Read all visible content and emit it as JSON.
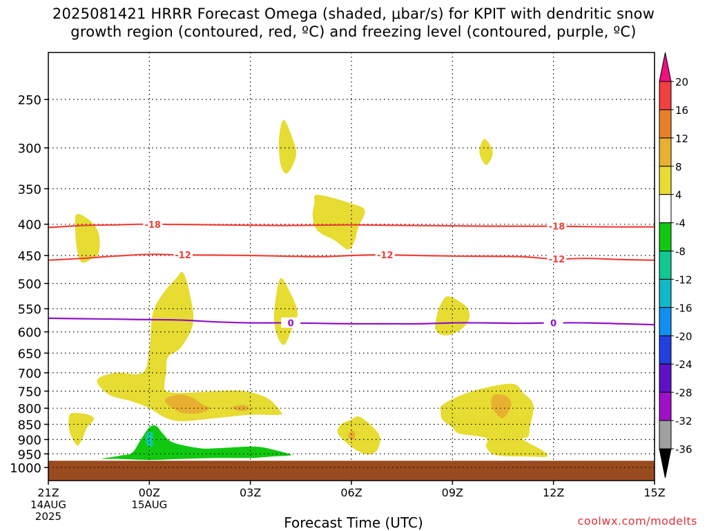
{
  "title_line1": "2025081421 HRRR Forecast Omega (shaded, μbar/s) for KPIT with dendritic snow",
  "title_line2": "growth region (contoured, red, ºC) and freezing level (contoured, purple, ºC)",
  "credit": "coolwx.com/modelts",
  "colors": {
    "ground": "#9a4a1f",
    "dendritic_contour": "#f0413a",
    "freezing_contour": "#9010c8",
    "yellow": "#e6dc32",
    "orange_light": "#e8b030",
    "orange": "#e8902a",
    "green": "#10c810",
    "teal": "#10c8a0"
  },
  "chart_data": {
    "type": "contour",
    "title": "2025081421 HRRR Forecast Omega (shaded, μbar/s) for KPIT with dendritic snow growth region (contoured, red, ºC) and freezing level (contoured, purple, ºC)",
    "xlabel": "Forecast Time (UTC)",
    "ylabel": "",
    "x_range_hours": [
      0,
      18
    ],
    "x_ticks": [
      {
        "h": 0,
        "label": "21Z",
        "sub": [
          "14AUG",
          "2025"
        ]
      },
      {
        "h": 3,
        "label": "00Z",
        "sub": [
          "15AUG"
        ]
      },
      {
        "h": 6,
        "label": "03Z",
        "sub": []
      },
      {
        "h": 9,
        "label": "06Z",
        "sub": []
      },
      {
        "h": 12,
        "label": "09Z",
        "sub": []
      },
      {
        "h": 15,
        "label": "12Z",
        "sub": []
      },
      {
        "h": 18,
        "label": "15Z",
        "sub": []
      }
    ],
    "y_axis": "pressure (hPa, log scale, inverted)",
    "y_ticks": [
      250,
      300,
      350,
      400,
      450,
      500,
      550,
      600,
      650,
      700,
      750,
      800,
      850,
      900,
      950,
      1000
    ],
    "colorbar": {
      "labels": [
        "20",
        "16",
        "12",
        "8",
        "4",
        "-4",
        "-8",
        "-12",
        "-16",
        "-20",
        "-24",
        "-28",
        "-32",
        "-36"
      ],
      "colors": [
        "#ee1080",
        "#f04040",
        "#e8802a",
        "#e8b030",
        "#e6dc32",
        "#ffffff",
        "#10c810",
        "#10c890",
        "#10b8c8",
        "#1090f0",
        "#2040e0",
        "#6010c8",
        "#a010c8",
        "#a0a0a0",
        "#000000"
      ]
    },
    "contours": [
      {
        "name": "-18",
        "color": "#f0413a",
        "points": [
          [
            0,
            405
          ],
          [
            1,
            402
          ],
          [
            2,
            401
          ],
          [
            3,
            400
          ],
          [
            5,
            401
          ],
          [
            7,
            402
          ],
          [
            9,
            401
          ],
          [
            11,
            402
          ],
          [
            13,
            403
          ],
          [
            15,
            403
          ],
          [
            16.5,
            404
          ],
          [
            18,
            404
          ]
        ],
        "labels": [
          [
            3.1,
            "-18"
          ],
          [
            15.1,
            "-18"
          ]
        ]
      },
      {
        "name": "-12",
        "color": "#f0413a",
        "points": [
          [
            0,
            458
          ],
          [
            1,
            455
          ],
          [
            2,
            451
          ],
          [
            3,
            448
          ],
          [
            4,
            449
          ],
          [
            6,
            450
          ],
          [
            8,
            452
          ],
          [
            9,
            450
          ],
          [
            10,
            449
          ],
          [
            12,
            451
          ],
          [
            14,
            452
          ],
          [
            15,
            456
          ],
          [
            16,
            455
          ],
          [
            17,
            457
          ],
          [
            18,
            458
          ]
        ],
        "labels": [
          [
            4,
            "-12"
          ],
          [
            10,
            "-12"
          ],
          [
            15.1,
            "-12"
          ]
        ]
      },
      {
        "name": "0",
        "color": "#9010c8",
        "points": [
          [
            0,
            570
          ],
          [
            2,
            572
          ],
          [
            3,
            573
          ],
          [
            4,
            574
          ],
          [
            5,
            578
          ],
          [
            6,
            580
          ],
          [
            7,
            580
          ],
          [
            8,
            581
          ],
          [
            9,
            582
          ],
          [
            10,
            582
          ],
          [
            11,
            582
          ],
          [
            12,
            580
          ],
          [
            13,
            580
          ],
          [
            14,
            581
          ],
          [
            15,
            580
          ],
          [
            16,
            580
          ],
          [
            17,
            582
          ],
          [
            18,
            584
          ]
        ],
        "labels": [
          [
            7.2,
            "0"
          ],
          [
            15.0,
            "0"
          ]
        ]
      }
    ],
    "ground_level_hPa": 975,
    "shaded_regions": [
      {
        "level": "4 to 8",
        "color": "#e6dc32",
        "points": [
          [
            0.85,
            385
          ],
          [
            1.25,
            395
          ],
          [
            1.5,
            415
          ],
          [
            1.5,
            445
          ],
          [
            1.3,
            455
          ],
          [
            1.0,
            462
          ],
          [
            0.85,
            440
          ],
          [
            0.8,
            405
          ]
        ]
      },
      {
        "level": "4 to 8",
        "color": "#e6dc32",
        "points": [
          [
            7.0,
            270
          ],
          [
            7.3,
            295
          ],
          [
            7.35,
            310
          ],
          [
            7.1,
            330
          ],
          [
            6.9,
            320
          ],
          [
            6.85,
            290
          ]
        ]
      },
      {
        "level": "4 to 8",
        "color": "#e6dc32",
        "points": [
          [
            12.95,
            290
          ],
          [
            13.2,
            305
          ],
          [
            13.0,
            320
          ],
          [
            12.8,
            305
          ]
        ]
      },
      {
        "level": "4 to 8",
        "color": "#e6dc32",
        "points": [
          [
            8.0,
            358
          ],
          [
            9.0,
            370
          ],
          [
            9.4,
            380
          ],
          [
            9.2,
            405
          ],
          [
            9.1,
            425
          ],
          [
            8.9,
            440
          ],
          [
            8.5,
            425
          ],
          [
            8.0,
            410
          ],
          [
            7.85,
            390
          ],
          [
            7.9,
            370
          ]
        ]
      },
      {
        "level": "4 to 8",
        "color": "#e6dc32",
        "points": [
          [
            6.9,
            490
          ],
          [
            7.2,
            520
          ],
          [
            7.4,
            560
          ],
          [
            7.2,
            600
          ],
          [
            7.0,
            630
          ],
          [
            6.8,
            610
          ],
          [
            6.7,
            570
          ],
          [
            6.75,
            530
          ]
        ]
      },
      {
        "level": "4 to 8",
        "color": "#e6dc32",
        "points": [
          [
            11.9,
            525
          ],
          [
            12.4,
            545
          ],
          [
            12.5,
            570
          ],
          [
            12.25,
            595
          ],
          [
            11.8,
            608
          ],
          [
            11.5,
            595
          ],
          [
            11.55,
            560
          ],
          [
            11.7,
            535
          ]
        ]
      },
      {
        "level": "4 to 8",
        "color": "#e6dc32",
        "points": [
          [
            4.0,
            480
          ],
          [
            4.2,
            520
          ],
          [
            4.3,
            580
          ],
          [
            3.95,
            635
          ],
          [
            3.55,
            660
          ],
          [
            3.5,
            700
          ],
          [
            3.45,
            730
          ],
          [
            3.5,
            750
          ],
          [
            4.0,
            755
          ],
          [
            5.0,
            750
          ],
          [
            5.8,
            750
          ],
          [
            6.5,
            770
          ],
          [
            6.9,
            810
          ],
          [
            6.85,
            820
          ],
          [
            6.0,
            820
          ],
          [
            5.0,
            830
          ],
          [
            4.0,
            840
          ],
          [
            3.5,
            830
          ],
          [
            3.0,
            800
          ],
          [
            2.5,
            780
          ],
          [
            1.8,
            760
          ],
          [
            1.45,
            720
          ],
          [
            2.0,
            700
          ],
          [
            2.8,
            700
          ],
          [
            3.0,
            640
          ],
          [
            3.1,
            560
          ],
          [
            3.4,
            520
          ],
          [
            3.8,
            490
          ]
        ]
      },
      {
        "level": "4 to 8",
        "color": "#e6dc32",
        "points": [
          [
            0.7,
            815
          ],
          [
            1.2,
            820
          ],
          [
            1.35,
            835
          ],
          [
            1.15,
            860
          ],
          [
            1.0,
            900
          ],
          [
            0.85,
            920
          ],
          [
            0.65,
            880
          ],
          [
            0.6,
            840
          ]
        ]
      },
      {
        "level": "4 to 8",
        "color": "#e6dc32",
        "points": [
          [
            9.2,
            825
          ],
          [
            9.5,
            845
          ],
          [
            9.8,
            880
          ],
          [
            9.85,
            910
          ],
          [
            9.7,
            945
          ],
          [
            9.4,
            950
          ],
          [
            9.0,
            925
          ],
          [
            8.6,
            880
          ],
          [
            8.7,
            850
          ],
          [
            9.0,
            835
          ]
        ]
      },
      {
        "level": "4 to 8",
        "color": "#e6dc32",
        "points": [
          [
            11.7,
            790
          ],
          [
            12.3,
            760
          ],
          [
            13.0,
            740
          ],
          [
            13.8,
            730
          ],
          [
            14.1,
            755
          ],
          [
            14.4,
            790
          ],
          [
            14.3,
            860
          ],
          [
            14.25,
            890
          ],
          [
            14.1,
            900
          ],
          [
            14.7,
            940
          ],
          [
            14.8,
            960
          ],
          [
            14.3,
            960
          ],
          [
            13.3,
            955
          ],
          [
            13.0,
            925
          ],
          [
            13.0,
            895
          ],
          [
            12.2,
            880
          ],
          [
            12.0,
            860
          ],
          [
            11.7,
            835
          ],
          [
            11.65,
            810
          ]
        ]
      },
      {
        "level": "8 to 12",
        "color": "#e8b030",
        "points": [
          [
            3.5,
            770
          ],
          [
            3.9,
            760
          ],
          [
            4.3,
            770
          ],
          [
            4.6,
            790
          ],
          [
            4.8,
            800
          ],
          [
            4.5,
            815
          ],
          [
            4.0,
            815
          ],
          [
            3.7,
            800
          ],
          [
            3.5,
            785
          ]
        ]
      },
      {
        "level": "8 to 12",
        "color": "#e8b030",
        "points": [
          [
            5.5,
            795
          ],
          [
            5.8,
            790
          ],
          [
            5.95,
            800
          ],
          [
            5.8,
            808
          ],
          [
            5.55,
            805
          ]
        ]
      },
      {
        "level": "8 to 12",
        "color": "#e8b030",
        "points": [
          [
            9.0,
            870
          ],
          [
            9.1,
            875
          ],
          [
            9.1,
            895
          ],
          [
            9.0,
            900
          ],
          [
            8.9,
            890
          ],
          [
            8.95,
            875
          ]
        ]
      },
      {
        "level": "8 to 12",
        "color": "#e8b030",
        "points": [
          [
            13.25,
            760
          ],
          [
            13.6,
            765
          ],
          [
            13.75,
            790
          ],
          [
            13.5,
            830
          ],
          [
            13.25,
            810
          ],
          [
            13.15,
            785
          ]
        ]
      },
      {
        "level": "-4 to -8",
        "color": "#10c810",
        "points": [
          [
            2.75,
            900
          ],
          [
            3.0,
            860
          ],
          [
            3.2,
            855
          ],
          [
            3.4,
            880
          ],
          [
            3.7,
            910
          ],
          [
            4.5,
            930
          ],
          [
            5.0,
            930
          ],
          [
            5.8,
            925
          ],
          [
            6.2,
            925
          ],
          [
            6.5,
            930
          ],
          [
            7.0,
            945
          ],
          [
            7.2,
            955
          ],
          [
            6.6,
            960
          ],
          [
            6.0,
            965
          ],
          [
            5.0,
            965
          ],
          [
            4.0,
            968
          ],
          [
            3.0,
            972
          ],
          [
            2.0,
            968
          ],
          [
            1.6,
            968
          ],
          [
            2.2,
            955
          ],
          [
            2.5,
            945
          ]
        ]
      },
      {
        "level": "-8 to -12",
        "color": "#10c8a0",
        "points": [
          [
            3.0,
            875
          ],
          [
            3.1,
            880
          ],
          [
            3.1,
            920
          ],
          [
            3.0,
            925
          ],
          [
            2.9,
            910
          ],
          [
            2.9,
            885
          ]
        ]
      }
    ]
  }
}
